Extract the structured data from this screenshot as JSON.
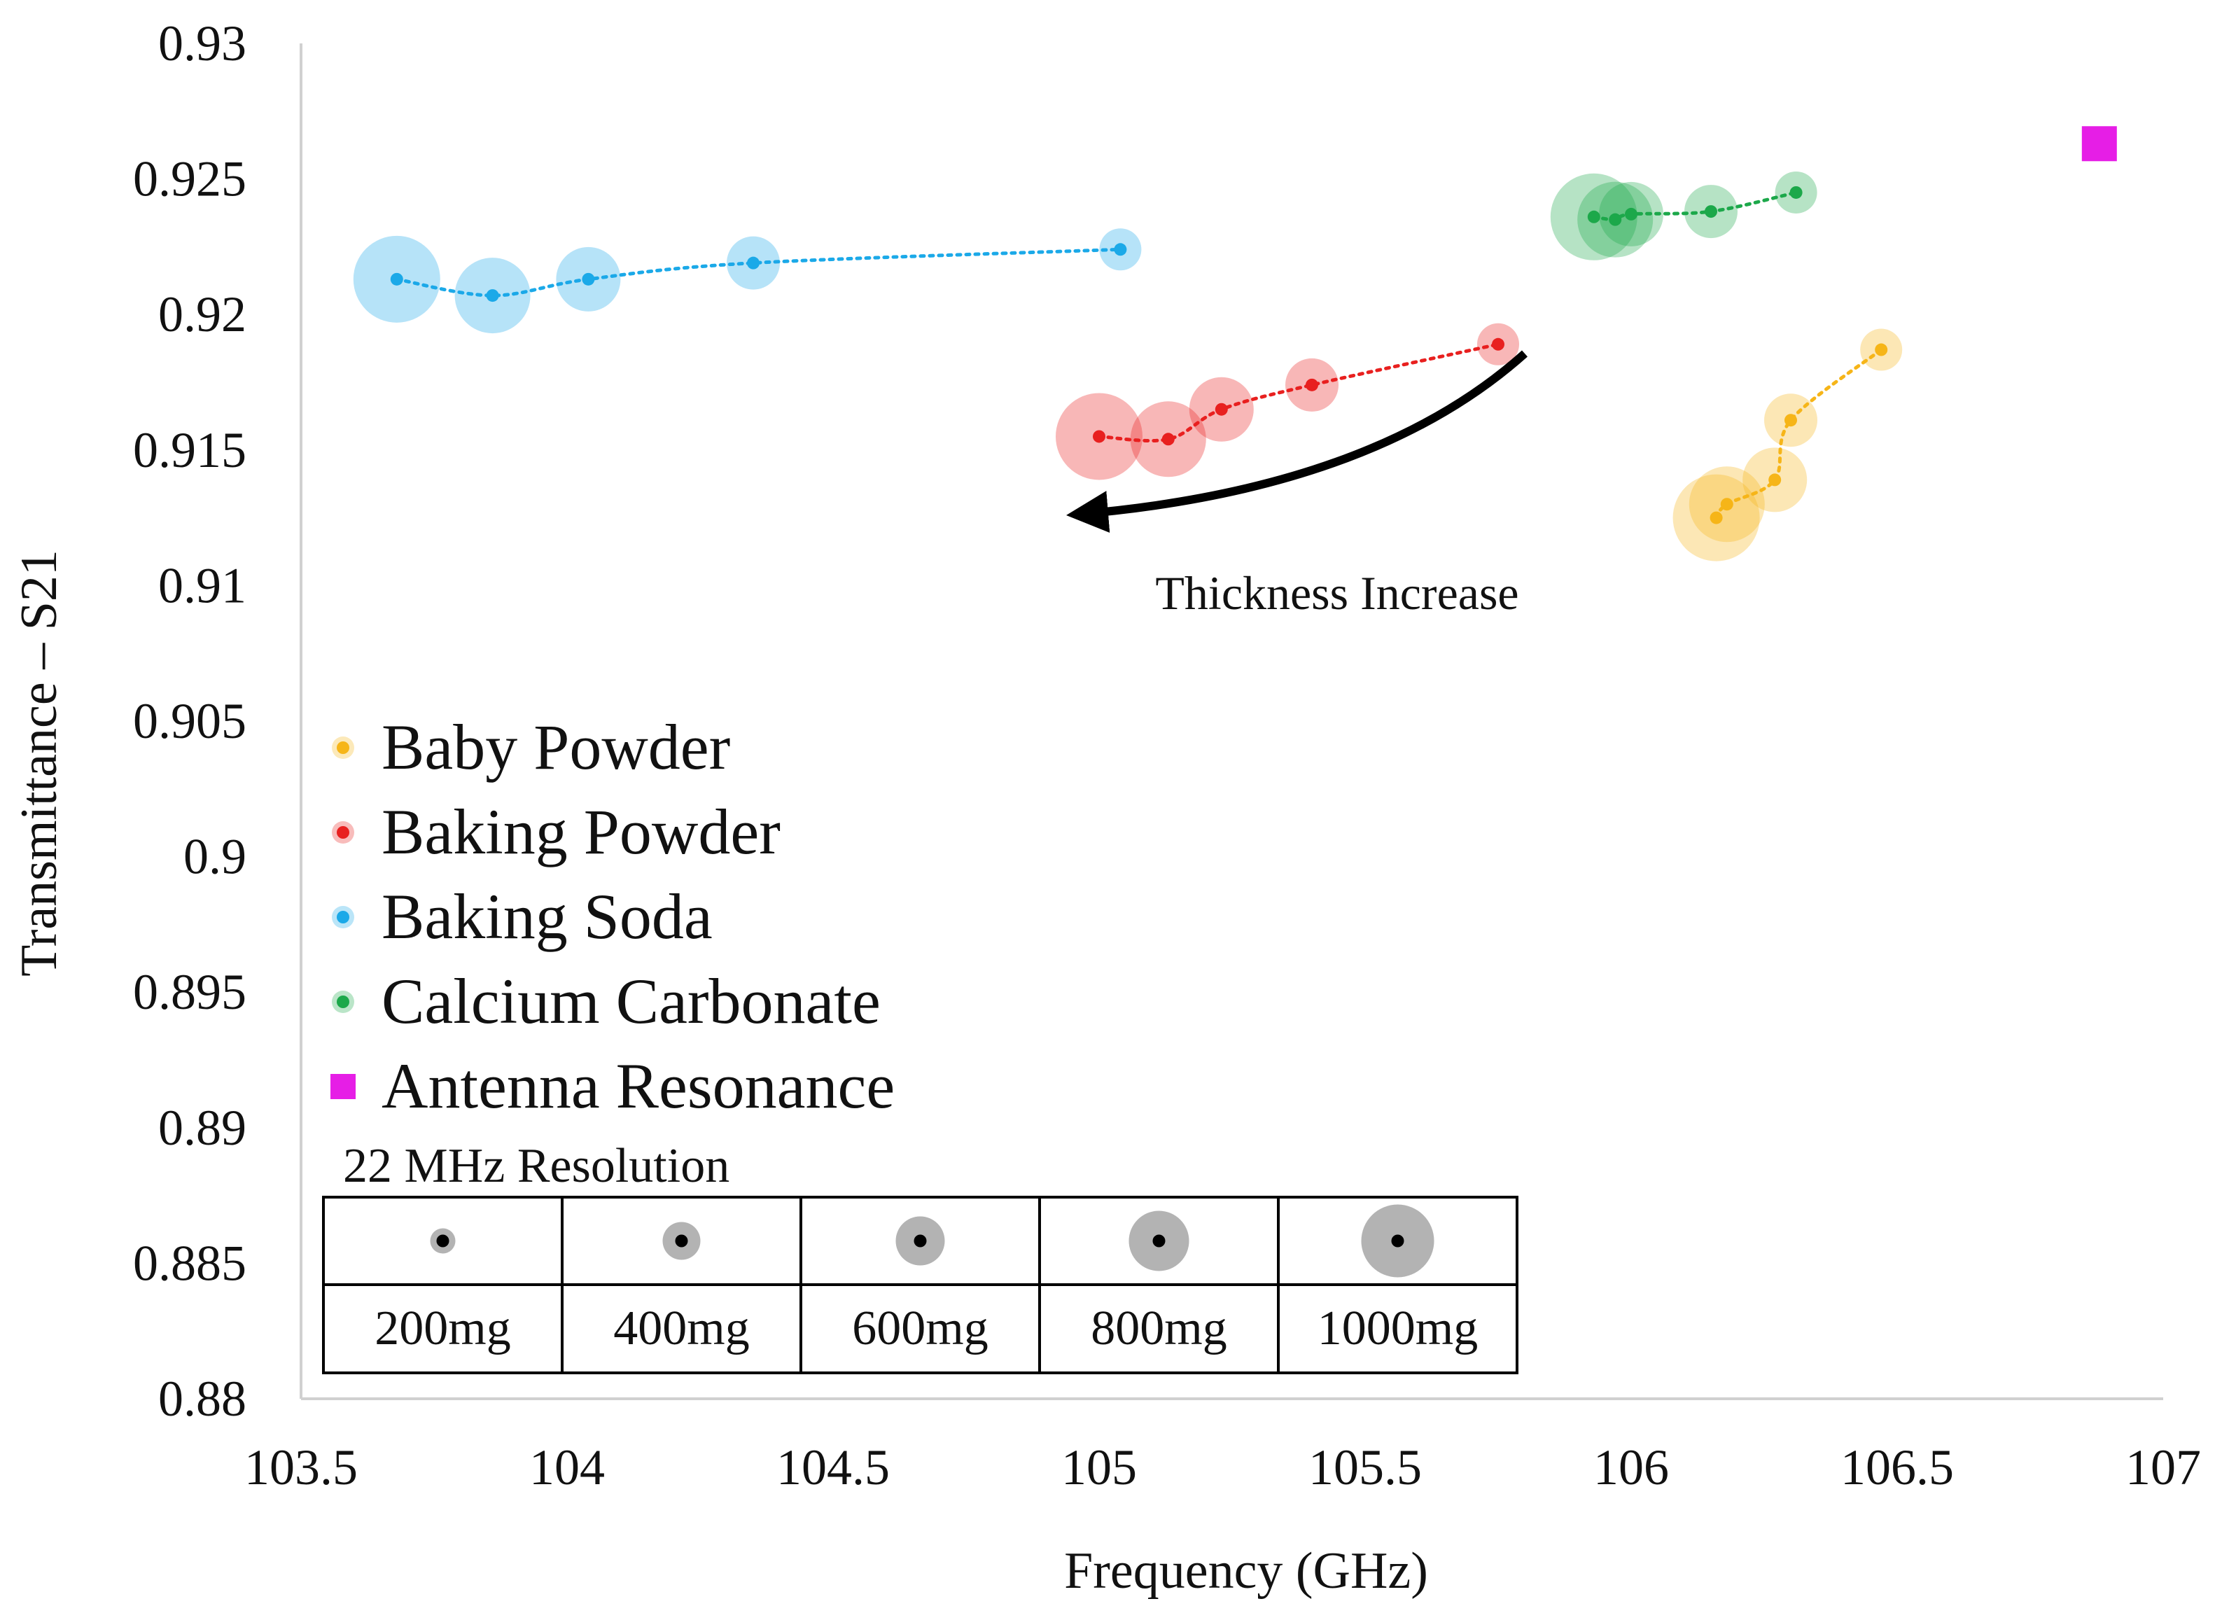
{
  "chart_data": {
    "type": "scatter",
    "title": "",
    "xlabel": "Frequency (GHz)",
    "ylabel": "Transmittance – S21",
    "xlim": [
      103.5,
      107
    ],
    "ylim": [
      0.88,
      0.93
    ],
    "x_ticks": [
      "103.5",
      "104",
      "104.5",
      "105",
      "105.5",
      "106",
      "106.5",
      "107"
    ],
    "y_ticks": [
      "0.93",
      "0.925",
      "0.92",
      "0.915",
      "0.91",
      "0.905",
      "0.9",
      "0.895",
      "0.89",
      "0.885",
      "0.88"
    ],
    "grid": false,
    "legend_position": "bottom-left",
    "series": [
      {
        "name": "Baby Powder",
        "color": "#f6b518",
        "x": [
          106.47,
          106.3,
          106.27,
          106.18,
          106.16
        ],
        "y": [
          0.9187,
          0.9161,
          0.9139,
          0.913,
          0.9125
        ],
        "mass_mg": [
          200,
          400,
          600,
          800,
          1000
        ],
        "trend": "dotted"
      },
      {
        "name": "Baking Powder",
        "color": "#e8201f",
        "x": [
          105.75,
          105.4,
          105.23,
          105.13,
          105.0
        ],
        "y": [
          0.9189,
          0.9174,
          0.9165,
          0.9154,
          0.9155
        ],
        "mass_mg": [
          200,
          400,
          600,
          800,
          1000
        ],
        "trend": "dotted"
      },
      {
        "name": "Baking Soda",
        "color": "#1ba9e8",
        "x": [
          105.04,
          104.35,
          104.04,
          103.86,
          103.68
        ],
        "y": [
          0.9224,
          0.9219,
          0.9213,
          0.9207,
          0.9213
        ],
        "mass_mg": [
          200,
          400,
          600,
          800,
          1000
        ],
        "trend": "dotted"
      },
      {
        "name": "Calcium Carbonate",
        "color": "#1ca84a",
        "x": [
          106.31,
          106.15,
          106.0,
          105.97,
          105.93
        ],
        "y": [
          0.9245,
          0.9238,
          0.9237,
          0.9235,
          0.9236
        ],
        "mass_mg": [
          200,
          400,
          600,
          800,
          1000
        ],
        "trend": "dotted"
      },
      {
        "name": "Antenna Resonance",
        "color": "#e61ee6",
        "marker": "square",
        "x": [
          106.88
        ],
        "y": [
          0.9263
        ]
      }
    ],
    "annotations": [
      {
        "text": "Thickness Increase",
        "arrow": "curved, pointing toward lower frequency"
      }
    ],
    "size_key": {
      "title": "22 MHz Resolution",
      "labels": [
        "200mg",
        "400mg",
        "600mg",
        "800mg",
        "1000mg"
      ]
    }
  },
  "colors": {
    "axis": "#d0d0d0",
    "key_bubble": "#b3b3b3",
    "key_dot": "#000000"
  }
}
